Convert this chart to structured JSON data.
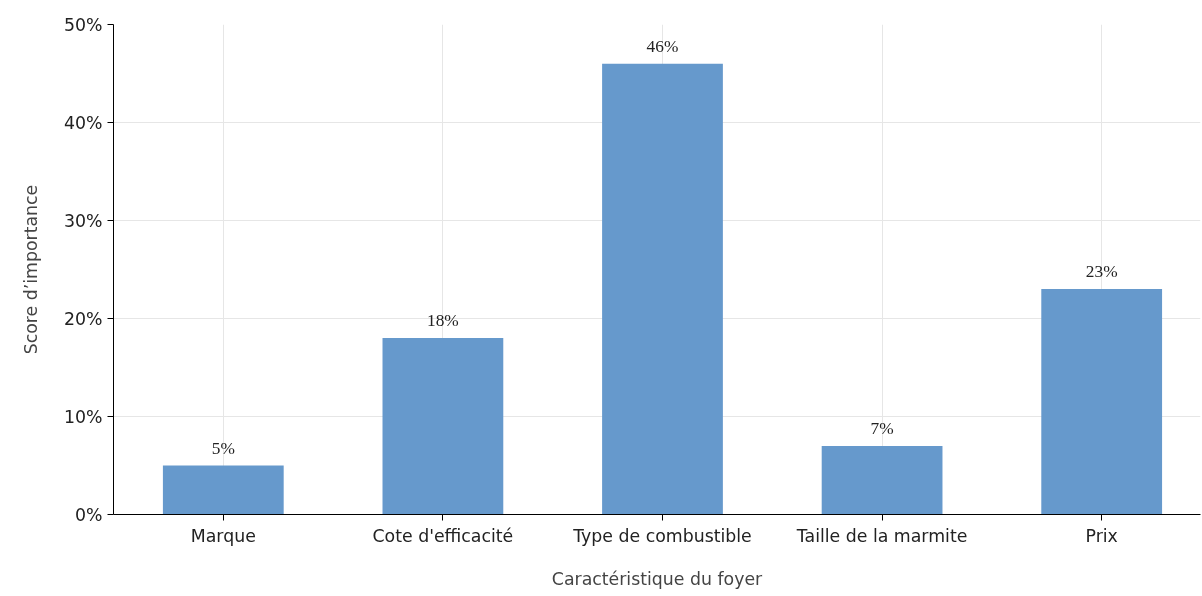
{
  "chart_data": {
    "type": "bar",
    "xlabel": "Caractéristique du foyer",
    "ylabel": "Score d’importance",
    "categories": [
      "Marque",
      "Cote d'efficacité",
      "Type de combustible",
      "Taille de la marmite",
      "Prix"
    ],
    "values": [
      5,
      18,
      46,
      7,
      23
    ],
    "color": "#6699cc",
    "value_labels": [
      "5%",
      "18%",
      "46%",
      "7%",
      "23%"
    ],
    "ylim": [
      0,
      50
    ],
    "yticks": [
      {
        "value": 0,
        "label": "0%"
      },
      {
        "value": 10,
        "label": "10%"
      },
      {
        "value": 20,
        "label": "20%"
      },
      {
        "value": 30,
        "label": "30%"
      },
      {
        "value": 40,
        "label": "40%"
      },
      {
        "value": 50,
        "label": "50%"
      }
    ],
    "grid": true
  }
}
